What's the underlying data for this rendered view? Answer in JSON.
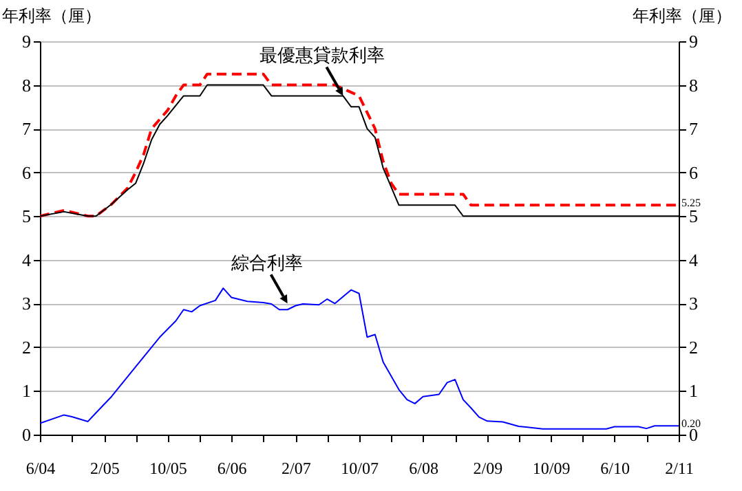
{
  "chart_data": {
    "type": "line",
    "ylabel": "年利率（厘）",
    "y2label": "年利率（厘）",
    "xlim": [
      "2004-06",
      "2011-02"
    ],
    "xticks": [
      {
        "value": "2004-06",
        "label": "6/04"
      },
      {
        "value": "2004-10",
        "label": null
      },
      {
        "value": "2005-02",
        "label": "2/05"
      },
      {
        "value": "2005-06",
        "label": null
      },
      {
        "value": "2005-10",
        "label": "10/05"
      },
      {
        "value": "2006-02",
        "label": null
      },
      {
        "value": "2006-06",
        "label": "6/06"
      },
      {
        "value": "2006-10",
        "label": null
      },
      {
        "value": "2007-02",
        "label": "2/07"
      },
      {
        "value": "2007-06",
        "label": null
      },
      {
        "value": "2007-10",
        "label": "10/07"
      },
      {
        "value": "2008-02",
        "label": null
      },
      {
        "value": "2008-06",
        "label": "6/08"
      },
      {
        "value": "2008-10",
        "label": null
      },
      {
        "value": "2009-02",
        "label": "2/09"
      },
      {
        "value": "2009-06",
        "label": null
      },
      {
        "value": "2009-10",
        "label": "10/09"
      },
      {
        "value": "2010-02",
        "label": null
      },
      {
        "value": "2010-06",
        "label": "6/10"
      },
      {
        "value": "2010-10",
        "label": null
      },
      {
        "value": "2011-02",
        "label": "2/11"
      }
    ],
    "ylim": [
      0,
      9
    ],
    "yticks": [
      0,
      1,
      2,
      3,
      4,
      5,
      6,
      7,
      8,
      9
    ],
    "y2lim": [
      0,
      9
    ],
    "y2ticks": [
      0,
      1,
      2,
      3,
      4,
      5,
      6,
      7,
      8,
      9
    ],
    "grid": "y",
    "series": [
      {
        "color": "#ff0000",
        "line_style": "dashed",
        "x": [
          "2004-06",
          "2004-09",
          "2004-12",
          "2005-01",
          "2005-03",
          "2005-05",
          "2005-06",
          "2005-07",
          "2005-08",
          "2005-10",
          "2005-11",
          "2005-12",
          "2006-02",
          "2006-03",
          "2006-10",
          "2006-11",
          "2007-07",
          "2007-10",
          "2007-12",
          "2008-01",
          "2008-02",
          "2008-03",
          "2008-11",
          "2008-12",
          "2011-02"
        ],
        "values": [
          5.0,
          5.13,
          5.0,
          5.0,
          5.27,
          5.64,
          6.0,
          6.4,
          7.0,
          7.42,
          7.75,
          8.0,
          8.0,
          8.25,
          8.25,
          8.0,
          8.0,
          7.75,
          7.0,
          6.25,
          5.75,
          5.5,
          5.5,
          5.25,
          5.25
        ]
      },
      {
        "color": "#000000",
        "x": [
          "2004-06",
          "2004-09",
          "2004-12",
          "2005-01",
          "2005-03",
          "2005-05",
          "2005-06",
          "2005-07",
          "2005-08",
          "2005-09",
          "2005-10",
          "2005-12",
          "2006-02",
          "2006-03",
          "2006-10",
          "2006-11",
          "2007-08",
          "2007-09",
          "2007-10",
          "2007-11",
          "2007-12",
          "2008-01",
          "2008-03",
          "2008-10",
          "2008-11",
          "2011-02"
        ],
        "values": [
          5.0,
          5.1,
          5.0,
          5.0,
          5.27,
          5.6,
          5.75,
          6.2,
          6.75,
          7.1,
          7.3,
          7.75,
          7.75,
          8.0,
          8.0,
          7.75,
          7.75,
          7.5,
          7.5,
          7.0,
          6.8,
          6.1,
          5.25,
          5.25,
          5.0,
          5.0
        ]
      },
      {
        "color": "#0000ff",
        "x": [
          "2004-06",
          "2004-09",
          "2004-10",
          "2004-12",
          "2005-01",
          "2005-03",
          "2005-06",
          "2005-09",
          "2005-11",
          "2005-12",
          "2006-01",
          "2006-02",
          "2006-04",
          "2006-05",
          "2006-06",
          "2006-08",
          "2006-10",
          "2006-11",
          "2006-12",
          "2007-01",
          "2007-02",
          "2007-03",
          "2007-05",
          "2007-06",
          "2007-07",
          "2007-09",
          "2007-10",
          "2007-11",
          "2007-12",
          "2008-01",
          "2008-03",
          "2008-04",
          "2008-05",
          "2008-06",
          "2008-08",
          "2008-09",
          "2008-10",
          "2008-11",
          "2008-12",
          "2009-01",
          "2009-02",
          "2009-04",
          "2009-06",
          "2009-09",
          "2010-05",
          "2010-06",
          "2010-09",
          "2010-10",
          "2010-11",
          "2011-02"
        ],
        "values": [
          0.26,
          0.45,
          0.41,
          0.3,
          0.5,
          0.87,
          1.55,
          2.23,
          2.6,
          2.86,
          2.81,
          2.95,
          3.07,
          3.35,
          3.14,
          3.05,
          3.02,
          2.99,
          2.86,
          2.86,
          2.95,
          2.99,
          2.97,
          3.1,
          3.0,
          3.31,
          3.23,
          2.23,
          2.29,
          1.66,
          1.03,
          0.8,
          0.71,
          0.87,
          0.92,
          1.19,
          1.26,
          0.8,
          0.61,
          0.4,
          0.31,
          0.29,
          0.19,
          0.13,
          0.13,
          0.18,
          0.18,
          0.14,
          0.2,
          0.2
        ]
      }
    ],
    "annotations": [
      {
        "text": "最優惠貸款利率",
        "x": "2007-08",
        "y": 7.75
      },
      {
        "text": "綜合利率",
        "x": "2007-01",
        "y": 3.0
      },
      {
        "text": "5.25",
        "x": "2011-02",
        "y": 5.25
      },
      {
        "text": "0.20",
        "x": "2011-02",
        "y": 0.2
      }
    ]
  }
}
